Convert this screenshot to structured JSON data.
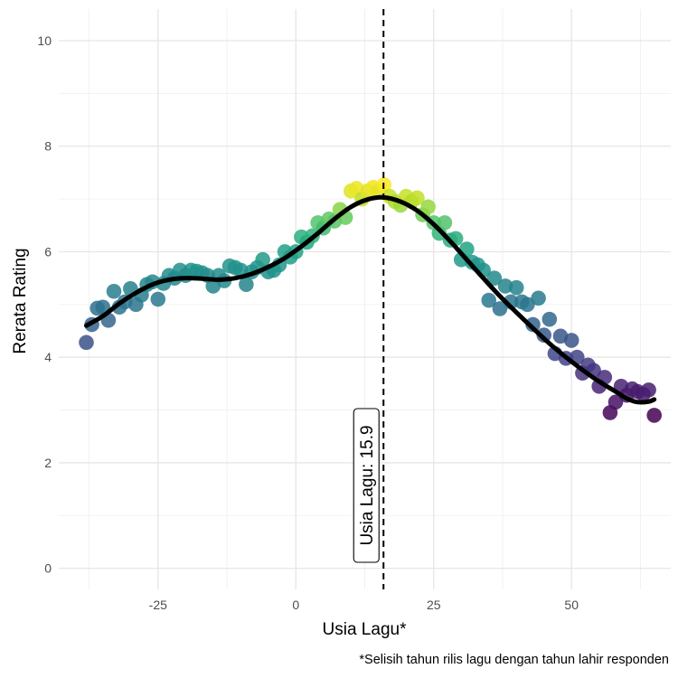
{
  "chart_data": {
    "type": "scatter",
    "xlabel": "Usia Lagu*",
    "ylabel": "Rerata Rating",
    "caption": "*Selisih tahun rilis lagu dengan tahun lahir responden",
    "xlim": [
      -43,
      68
    ],
    "ylim": [
      -0.4,
      10.6
    ],
    "x_ticks": [
      -25,
      0,
      25,
      50
    ],
    "y_ticks": [
      0,
      2,
      4,
      6,
      8,
      10
    ],
    "grid": true,
    "legend": "none",
    "color_scale": "viridis",
    "vline": {
      "x": 15.9,
      "label": "Usia Lagu: 15.9",
      "style": "dashed",
      "color": "#000000"
    },
    "points": [
      {
        "x": -38,
        "y": 4.28
      },
      {
        "x": -37,
        "y": 4.62
      },
      {
        "x": -36,
        "y": 4.93
      },
      {
        "x": -35,
        "y": 4.95
      },
      {
        "x": -34,
        "y": 4.7
      },
      {
        "x": -33,
        "y": 5.25
      },
      {
        "x": -32,
        "y": 4.95
      },
      {
        "x": -31,
        "y": 5.05
      },
      {
        "x": -30,
        "y": 5.3
      },
      {
        "x": -29,
        "y": 5.0
      },
      {
        "x": -28,
        "y": 5.18
      },
      {
        "x": -27,
        "y": 5.38
      },
      {
        "x": -26,
        "y": 5.43
      },
      {
        "x": -25,
        "y": 5.1
      },
      {
        "x": -24,
        "y": 5.4
      },
      {
        "x": -23,
        "y": 5.55
      },
      {
        "x": -22,
        "y": 5.5
      },
      {
        "x": -21,
        "y": 5.65
      },
      {
        "x": -20,
        "y": 5.55
      },
      {
        "x": -19,
        "y": 5.65
      },
      {
        "x": -18,
        "y": 5.63
      },
      {
        "x": -17,
        "y": 5.6
      },
      {
        "x": -16,
        "y": 5.55
      },
      {
        "x": -15,
        "y": 5.35
      },
      {
        "x": -14,
        "y": 5.55
      },
      {
        "x": -13,
        "y": 5.45
      },
      {
        "x": -12,
        "y": 5.73
      },
      {
        "x": -11,
        "y": 5.7
      },
      {
        "x": -10,
        "y": 5.65
      },
      {
        "x": -9,
        "y": 5.38
      },
      {
        "x": -8,
        "y": 5.62
      },
      {
        "x": -7,
        "y": 5.7
      },
      {
        "x": -6,
        "y": 5.85
      },
      {
        "x": -5,
        "y": 5.62
      },
      {
        "x": -4,
        "y": 5.65
      },
      {
        "x": -3,
        "y": 5.75
      },
      {
        "x": -2,
        "y": 6.0
      },
      {
        "x": -1,
        "y": 5.9
      },
      {
        "x": 0,
        "y": 6.0
      },
      {
        "x": 1,
        "y": 6.28
      },
      {
        "x": 2,
        "y": 6.18
      },
      {
        "x": 3,
        "y": 6.3
      },
      {
        "x": 4,
        "y": 6.55
      },
      {
        "x": 5,
        "y": 6.45
      },
      {
        "x": 6,
        "y": 6.62
      },
      {
        "x": 7,
        "y": 6.58
      },
      {
        "x": 8,
        "y": 6.8
      },
      {
        "x": 9,
        "y": 6.65
      },
      {
        "x": 10,
        "y": 7.15
      },
      {
        "x": 11,
        "y": 7.2
      },
      {
        "x": 12,
        "y": 7.0
      },
      {
        "x": 13,
        "y": 7.15
      },
      {
        "x": 14,
        "y": 7.22
      },
      {
        "x": 15,
        "y": 7.15
      },
      {
        "x": 16,
        "y": 7.27
      },
      {
        "x": 17,
        "y": 7.05
      },
      {
        "x": 18,
        "y": 6.95
      },
      {
        "x": 19,
        "y": 6.88
      },
      {
        "x": 20,
        "y": 7.05
      },
      {
        "x": 21,
        "y": 6.95
      },
      {
        "x": 22,
        "y": 7.02
      },
      {
        "x": 23,
        "y": 6.7
      },
      {
        "x": 24,
        "y": 6.85
      },
      {
        "x": 25,
        "y": 6.55
      },
      {
        "x": 26,
        "y": 6.35
      },
      {
        "x": 27,
        "y": 6.55
      },
      {
        "x": 28,
        "y": 6.22
      },
      {
        "x": 29,
        "y": 6.25
      },
      {
        "x": 30,
        "y": 5.85
      },
      {
        "x": 31,
        "y": 6.05
      },
      {
        "x": 32,
        "y": 5.8
      },
      {
        "x": 33,
        "y": 5.75
      },
      {
        "x": 34,
        "y": 5.65
      },
      {
        "x": 35,
        "y": 5.08
      },
      {
        "x": 36,
        "y": 5.5
      },
      {
        "x": 37,
        "y": 4.92
      },
      {
        "x": 38,
        "y": 5.35
      },
      {
        "x": 39,
        "y": 5.05
      },
      {
        "x": 40,
        "y": 5.32
      },
      {
        "x": 41,
        "y": 5.05
      },
      {
        "x": 42,
        "y": 5.0
      },
      {
        "x": 43,
        "y": 4.62
      },
      {
        "x": 44,
        "y": 5.12
      },
      {
        "x": 45,
        "y": 4.42
      },
      {
        "x": 46,
        "y": 4.72
      },
      {
        "x": 47,
        "y": 4.07
      },
      {
        "x": 48,
        "y": 4.4
      },
      {
        "x": 49,
        "y": 3.98
      },
      {
        "x": 50,
        "y": 4.32
      },
      {
        "x": 51,
        "y": 4.0
      },
      {
        "x": 52,
        "y": 3.7
      },
      {
        "x": 53,
        "y": 3.85
      },
      {
        "x": 54,
        "y": 3.75
      },
      {
        "x": 55,
        "y": 3.45
      },
      {
        "x": 56,
        "y": 3.62
      },
      {
        "x": 57,
        "y": 2.95
      },
      {
        "x": 58,
        "y": 3.15
      },
      {
        "x": 59,
        "y": 3.45
      },
      {
        "x": 60,
        "y": 3.28
      },
      {
        "x": 61,
        "y": 3.4
      },
      {
        "x": 62,
        "y": 3.35
      },
      {
        "x": 63,
        "y": 3.3
      },
      {
        "x": 64,
        "y": 3.38
      },
      {
        "x": 65,
        "y": 2.9
      }
    ],
    "smooth": [
      {
        "x": -38,
        "y": 4.6
      },
      {
        "x": -35,
        "y": 4.78
      },
      {
        "x": -32,
        "y": 5.02
      },
      {
        "x": -29,
        "y": 5.22
      },
      {
        "x": -26,
        "y": 5.38
      },
      {
        "x": -23,
        "y": 5.47
      },
      {
        "x": -20,
        "y": 5.5
      },
      {
        "x": -17,
        "y": 5.49
      },
      {
        "x": -14,
        "y": 5.47
      },
      {
        "x": -11,
        "y": 5.5
      },
      {
        "x": -8,
        "y": 5.58
      },
      {
        "x": -5,
        "y": 5.71
      },
      {
        "x": -2,
        "y": 5.88
      },
      {
        "x": 1,
        "y": 6.1
      },
      {
        "x": 4,
        "y": 6.35
      },
      {
        "x": 7,
        "y": 6.62
      },
      {
        "x": 10,
        "y": 6.85
      },
      {
        "x": 13,
        "y": 6.99
      },
      {
        "x": 15.9,
        "y": 7.03
      },
      {
        "x": 19,
        "y": 6.95
      },
      {
        "x": 22,
        "y": 6.78
      },
      {
        "x": 25,
        "y": 6.52
      },
      {
        "x": 28,
        "y": 6.2
      },
      {
        "x": 31,
        "y": 5.85
      },
      {
        "x": 34,
        "y": 5.5
      },
      {
        "x": 37,
        "y": 5.16
      },
      {
        "x": 40,
        "y": 4.85
      },
      {
        "x": 43,
        "y": 4.55
      },
      {
        "x": 46,
        "y": 4.26
      },
      {
        "x": 49,
        "y": 4.0
      },
      {
        "x": 52,
        "y": 3.76
      },
      {
        "x": 55,
        "y": 3.54
      },
      {
        "x": 58,
        "y": 3.35
      },
      {
        "x": 60,
        "y": 3.22
      },
      {
        "x": 62,
        "y": 3.15
      },
      {
        "x": 64,
        "y": 3.16
      },
      {
        "x": 65,
        "y": 3.2
      }
    ]
  }
}
